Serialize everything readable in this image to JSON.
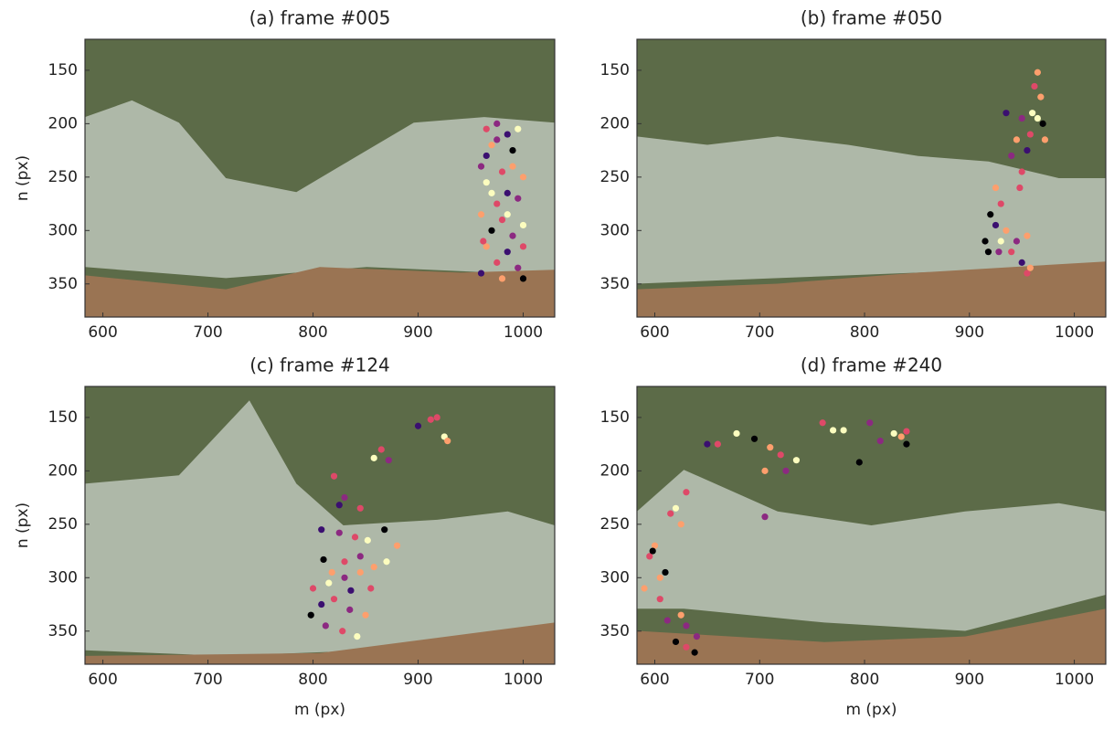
{
  "chart_data": [
    {
      "type": "scatter",
      "title": "(a) frame #005",
      "ylabel": "n (px)",
      "x": [
        965,
        975,
        985,
        995,
        970,
        990,
        960,
        980,
        1000,
        965,
        985,
        975,
        995,
        960,
        980,
        1000,
        970,
        990,
        965,
        985,
        975,
        995,
        960,
        980,
        1000,
        970,
        990,
        965,
        1000,
        985,
        975,
        962
      ],
      "y": [
        205,
        200,
        210,
        205,
        220,
        225,
        240,
        245,
        250,
        255,
        265,
        275,
        270,
        285,
        290,
        295,
        300,
        305,
        315,
        320,
        330,
        335,
        340,
        345,
        345,
        265,
        240,
        230,
        315,
        285,
        215,
        310
      ],
      "colors": [
        "#de4968",
        "#8c2981",
        "#3b0f70",
        "#fcfdbf",
        "#fe9f6d",
        "#000004",
        "#8c2981",
        "#de4968",
        "#fe9f6d",
        "#fcfdbf",
        "#3b0f70",
        "#de4968",
        "#8c2981",
        "#fe9f6d",
        "#de4968",
        "#fcfdbf",
        "#000004",
        "#8c2981",
        "#fe9f6d",
        "#3b0f70",
        "#de4968",
        "#8c2981",
        "#3b0f70",
        "#fe9f6d",
        "#000004",
        "#fcfdbf",
        "#fe9f6d",
        "#3b0f70",
        "#de4968",
        "#fcfdbf",
        "#8c2981",
        "#de4968"
      ],
      "xlim": [
        583,
        1030
      ],
      "ylim": [
        381,
        121
      ],
      "xticks": [
        600,
        700,
        800,
        900,
        1000
      ],
      "yticks": [
        150,
        200,
        250,
        300,
        350
      ]
    },
    {
      "type": "scatter",
      "title": "(b) frame #050",
      "x": [
        965,
        962,
        968,
        960,
        950,
        970,
        958,
        945,
        955,
        972,
        940,
        950,
        925,
        930,
        920,
        925,
        935,
        915,
        930,
        945,
        955,
        940,
        950,
        955,
        958,
        935,
        965,
        928,
        918,
        948
      ],
      "y": [
        152,
        165,
        175,
        190,
        195,
        200,
        210,
        215,
        225,
        215,
        230,
        245,
        260,
        275,
        285,
        295,
        300,
        310,
        310,
        310,
        305,
        320,
        330,
        340,
        335,
        190,
        195,
        320,
        320,
        260
      ],
      "colors": [
        "#fe9f6d",
        "#de4968",
        "#fe9f6d",
        "#fcfdbf",
        "#8c2981",
        "#000004",
        "#de4968",
        "#fe9f6d",
        "#3b0f70",
        "#fe9f6d",
        "#8c2981",
        "#de4968",
        "#fe9f6d",
        "#de4968",
        "#000004",
        "#3b0f70",
        "#fe9f6d",
        "#000004",
        "#fcfdbf",
        "#8c2981",
        "#fe9f6d",
        "#de4968",
        "#3b0f70",
        "#de4968",
        "#fe9f6d",
        "#3b0f70",
        "#fcfdbf",
        "#8c2981",
        "#000004",
        "#de4968"
      ],
      "xlim": [
        583,
        1030
      ],
      "ylim": [
        381,
        121
      ],
      "xticks": [
        600,
        700,
        800,
        900,
        1000
      ],
      "yticks": [
        150,
        200,
        250,
        300,
        350
      ]
    },
    {
      "type": "scatter",
      "title": "(c) frame #124",
      "xlabel": "m (px)",
      "ylabel": "n (px)",
      "x": [
        900,
        912,
        918,
        925,
        928,
        865,
        858,
        872,
        820,
        830,
        825,
        845,
        808,
        825,
        840,
        852,
        868,
        880,
        810,
        830,
        845,
        858,
        870,
        800,
        815,
        830,
        845,
        808,
        820,
        835,
        850,
        798,
        812,
        828,
        842,
        818,
        836,
        855
      ],
      "y": [
        158,
        152,
        150,
        168,
        172,
        180,
        188,
        190,
        205,
        225,
        232,
        235,
        255,
        258,
        262,
        265,
        255,
        270,
        283,
        285,
        280,
        290,
        285,
        310,
        305,
        300,
        295,
        325,
        320,
        330,
        335,
        335,
        345,
        350,
        355,
        295,
        312,
        310
      ],
      "colors": [
        "#3b0f70",
        "#de4968",
        "#de4968",
        "#fcfdbf",
        "#fe9f6d",
        "#de4968",
        "#fcfdbf",
        "#8c2981",
        "#de4968",
        "#8c2981",
        "#3b0f70",
        "#de4968",
        "#3b0f70",
        "#8c2981",
        "#de4968",
        "#fcfdbf",
        "#000004",
        "#fe9f6d",
        "#000004",
        "#de4968",
        "#8c2981",
        "#fe9f6d",
        "#fcfdbf",
        "#de4968",
        "#fcfdbf",
        "#8c2981",
        "#fe9f6d",
        "#3b0f70",
        "#de4968",
        "#8c2981",
        "#fe9f6d",
        "#000004",
        "#8c2981",
        "#de4968",
        "#fcfdbf",
        "#fe9f6d",
        "#3b0f70",
        "#de4968"
      ],
      "xlim": [
        583,
        1030
      ],
      "ylim": [
        381,
        121
      ],
      "xticks": [
        600,
        700,
        800,
        900,
        1000
      ],
      "yticks": [
        150,
        200,
        250,
        300,
        350
      ]
    },
    {
      "type": "scatter",
      "title": "(d) frame #240",
      "xlabel": "m (px)",
      "x": [
        600,
        595,
        605,
        610,
        598,
        615,
        625,
        620,
        630,
        605,
        612,
        625,
        630,
        620,
        630,
        638,
        640,
        660,
        678,
        695,
        710,
        705,
        720,
        725,
        735,
        760,
        770,
        780,
        795,
        805,
        815,
        828,
        835,
        840,
        840,
        705,
        650,
        590
      ],
      "y": [
        270,
        280,
        300,
        295,
        275,
        240,
        250,
        235,
        220,
        320,
        340,
        335,
        345,
        360,
        365,
        370,
        355,
        175,
        165,
        170,
        178,
        200,
        185,
        200,
        190,
        155,
        162,
        162,
        192,
        155,
        172,
        165,
        168,
        175,
        163,
        243,
        175,
        310
      ],
      "colors": [
        "#fe9f6d",
        "#de4968",
        "#fe9f6d",
        "#000004",
        "#000004",
        "#de4968",
        "#fe9f6d",
        "#fcfdbf",
        "#de4968",
        "#de4968",
        "#8c2981",
        "#fe9f6d",
        "#8c2981",
        "#000004",
        "#de4968",
        "#000004",
        "#8c2981",
        "#de4968",
        "#fcfdbf",
        "#000004",
        "#fe9f6d",
        "#fe9f6d",
        "#de4968",
        "#8c2981",
        "#fcfdbf",
        "#de4968",
        "#fcfdbf",
        "#fcfdbf",
        "#000004",
        "#8c2981",
        "#8c2981",
        "#fcfdbf",
        "#fe9f6d",
        "#000004",
        "#de4968",
        "#8c2981",
        "#3b0f70",
        "#fe9f6d"
      ],
      "xlim": [
        583,
        1030
      ],
      "ylim": [
        381,
        121
      ],
      "xticks": [
        600,
        700,
        800,
        900,
        1000
      ],
      "yticks": [
        150,
        200,
        250,
        300,
        350
      ]
    }
  ]
}
